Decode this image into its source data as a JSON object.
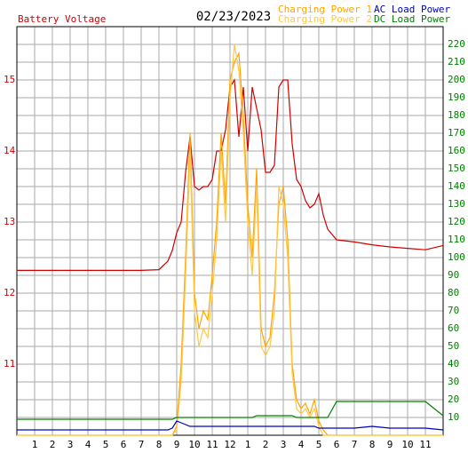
{
  "chart_data": {
    "type": "line",
    "title": "02/23/2023",
    "x": [
      0,
      1,
      2,
      3,
      4,
      5,
      6,
      7,
      8,
      8.5,
      8.75,
      9,
      9.25,
      9.5,
      9.75,
      10,
      10.25,
      10.5,
      10.75,
      11,
      11.25,
      11.5,
      11.75,
      12,
      12.25,
      12.5,
      12.75,
      13,
      13.25,
      13.5,
      13.75,
      14,
      14.25,
      14.5,
      14.75,
      15,
      15.25,
      15.5,
      15.75,
      16,
      16.25,
      16.5,
      16.75,
      17,
      17.25,
      17.5,
      18,
      19,
      20,
      21,
      22,
      23,
      24
    ],
    "xlim": [
      0,
      24
    ],
    "xticks": [
      1,
      2,
      3,
      4,
      5,
      6,
      7,
      8,
      9,
      10,
      11,
      12,
      {
        "value": 13,
        "label": "1"
      },
      {
        "value": 14,
        "label": "2"
      },
      {
        "value": 15,
        "label": "3"
      },
      {
        "value": 16,
        "label": "4"
      },
      {
        "value": 17,
        "label": "5"
      },
      {
        "value": 18,
        "label": "6"
      },
      {
        "value": 19,
        "label": "7"
      },
      {
        "value": 20,
        "label": "8"
      },
      {
        "value": 21,
        "label": "9"
      },
      {
        "value": 22,
        "label": "10"
      },
      {
        "value": 23,
        "label": "11"
      }
    ],
    "ylim": [
      10,
      15.75
    ],
    "yticks": [
      11,
      12,
      13,
      14,
      15
    ],
    "y2lim": [
      0,
      230
    ],
    "y2ticks": [
      10,
      20,
      30,
      40,
      50,
      60,
      70,
      80,
      90,
      100,
      110,
      120,
      130,
      140,
      150,
      160,
      170,
      180,
      190,
      200,
      210,
      220
    ],
    "grid": true,
    "series": [
      {
        "name": "Battery Voltage",
        "color": "#d00000",
        "axis": "y",
        "values": [
          12.32,
          12.32,
          12.32,
          12.32,
          12.32,
          12.32,
          12.32,
          12.32,
          12.33,
          12.45,
          12.6,
          12.85,
          13.0,
          13.7,
          14.2,
          13.5,
          13.45,
          13.5,
          13.5,
          13.6,
          14.0,
          14.0,
          14.3,
          14.9,
          15.0,
          14.2,
          14.9,
          14.0,
          14.9,
          14.6,
          14.3,
          13.7,
          13.7,
          13.8,
          14.9,
          15.0,
          15.0,
          14.1,
          13.6,
          13.5,
          13.3,
          13.2,
          13.25,
          13.4,
          13.1,
          12.9,
          12.75,
          12.72,
          12.68,
          12.65,
          12.63,
          12.61,
          12.67
        ]
      },
      {
        "name": "Charging Power 1",
        "color": "#ffa500",
        "axis": "y2",
        "values": [
          0,
          0,
          0,
          0,
          0,
          0,
          0,
          0,
          0,
          0,
          0,
          5,
          40,
          100,
          170,
          80,
          60,
          70,
          65,
          90,
          120,
          170,
          130,
          200,
          210,
          215,
          180,
          130,
          100,
          150,
          60,
          50,
          55,
          80,
          130,
          140,
          110,
          40,
          20,
          15,
          18,
          12,
          20,
          8,
          3,
          0,
          0,
          0,
          0,
          0,
          0,
          0,
          0
        ]
      },
      {
        "name": "Charging Power 2",
        "color": "#ffc848",
        "axis": "y2",
        "values": [
          0,
          0,
          0,
          0,
          0,
          0,
          0,
          0,
          0,
          0,
          0,
          3,
          30,
          90,
          160,
          70,
          50,
          60,
          55,
          80,
          110,
          160,
          120,
          190,
          220,
          205,
          170,
          120,
          90,
          140,
          50,
          45,
          50,
          70,
          140,
          130,
          100,
          35,
          15,
          12,
          15,
          10,
          15,
          5,
          0,
          0,
          0,
          0,
          0,
          0,
          0,
          0,
          0
        ]
      },
      {
        "name": "AC Load Power",
        "color": "#0000c0",
        "axis": "y2",
        "values": [
          3,
          3,
          3,
          3,
          3,
          3,
          3,
          3,
          3,
          3,
          4,
          8,
          7,
          6,
          5,
          5,
          5,
          5,
          5,
          5,
          5,
          5,
          5,
          5,
          5,
          5,
          5,
          5,
          5,
          5,
          5,
          5,
          5,
          5,
          5,
          5,
          5,
          5,
          5,
          5,
          5,
          5,
          5,
          4,
          4,
          4,
          4,
          4,
          5,
          4,
          4,
          4,
          3
        ]
      },
      {
        "name": "DC Load Power",
        "color": "#008000",
        "axis": "y2",
        "values": [
          9,
          9,
          9,
          9,
          9,
          9,
          9,
          9,
          9,
          9,
          9,
          10,
          10,
          10,
          10,
          10,
          10,
          10,
          10,
          10,
          10,
          10,
          10,
          10,
          10,
          10,
          10,
          10,
          10,
          11,
          11,
          11,
          11,
          11,
          11,
          11,
          11,
          11,
          10,
          10,
          10,
          10,
          10,
          10,
          10,
          10,
          19,
          19,
          19,
          19,
          19,
          19,
          11
        ]
      }
    ]
  }
}
